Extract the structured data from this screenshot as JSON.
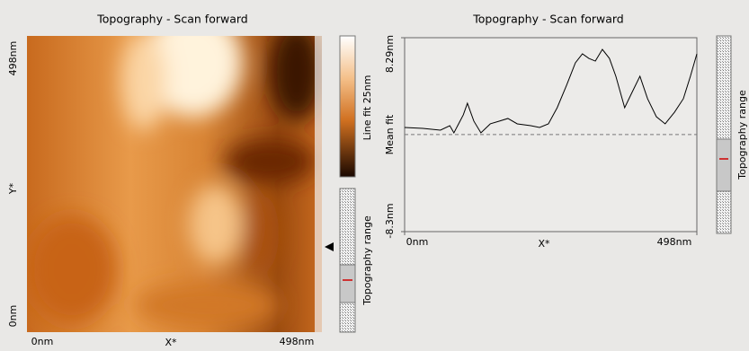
{
  "left_panel": {
    "title": "Topography - Scan forward",
    "y_axis_label": "Y*",
    "x_axis_label": "X*",
    "xticks": [
      {
        "value": 0,
        "label": "0nm"
      },
      {
        "value": 498,
        "label": "498nm"
      }
    ],
    "yticks": [
      {
        "value": 0,
        "label": "0nm"
      },
      {
        "value": 498,
        "label": "498nm"
      }
    ],
    "colorbar_label": "Line fit 25nm",
    "range_label": "Topography range"
  },
  "chart_data": {
    "type": "line",
    "title": "Topography - Scan forward",
    "x_label": "X*",
    "y_label": "Mean fit",
    "xlim": [
      0,
      498
    ],
    "ylim": [
      -8.3,
      8.29
    ],
    "xticks": [
      {
        "value": 0,
        "label": "0nm"
      },
      {
        "value": 498,
        "label": "498nm"
      }
    ],
    "yticks": [
      {
        "value": -8.3,
        "label": "-8.3nm"
      },
      {
        "value": 8.29,
        "label": "8.29nm"
      }
    ],
    "color": "#000000",
    "x": [
      0,
      31,
      61,
      77,
      84,
      100,
      107,
      118,
      130,
      146,
      161,
      176,
      192,
      215,
      230,
      245,
      260,
      276,
      291,
      303,
      314,
      325,
      337,
      349,
      360,
      375,
      386,
      401,
      414,
      429,
      444,
      460,
      475,
      487,
      498
    ],
    "values": [
      0.61,
      0.53,
      0.38,
      0.76,
      0.15,
      1.69,
      2.68,
      1.15,
      0.15,
      0.92,
      1.15,
      1.38,
      0.92,
      0.76,
      0.61,
      0.92,
      2.3,
      4.22,
      6.14,
      6.91,
      6.52,
      6.29,
      7.29,
      6.52,
      4.99,
      2.3,
      3.45,
      4.99,
      3.07,
      1.53,
      0.92,
      1.92,
      3.07,
      4.99,
      6.91
    ]
  },
  "right_range_label": "Topography range"
}
